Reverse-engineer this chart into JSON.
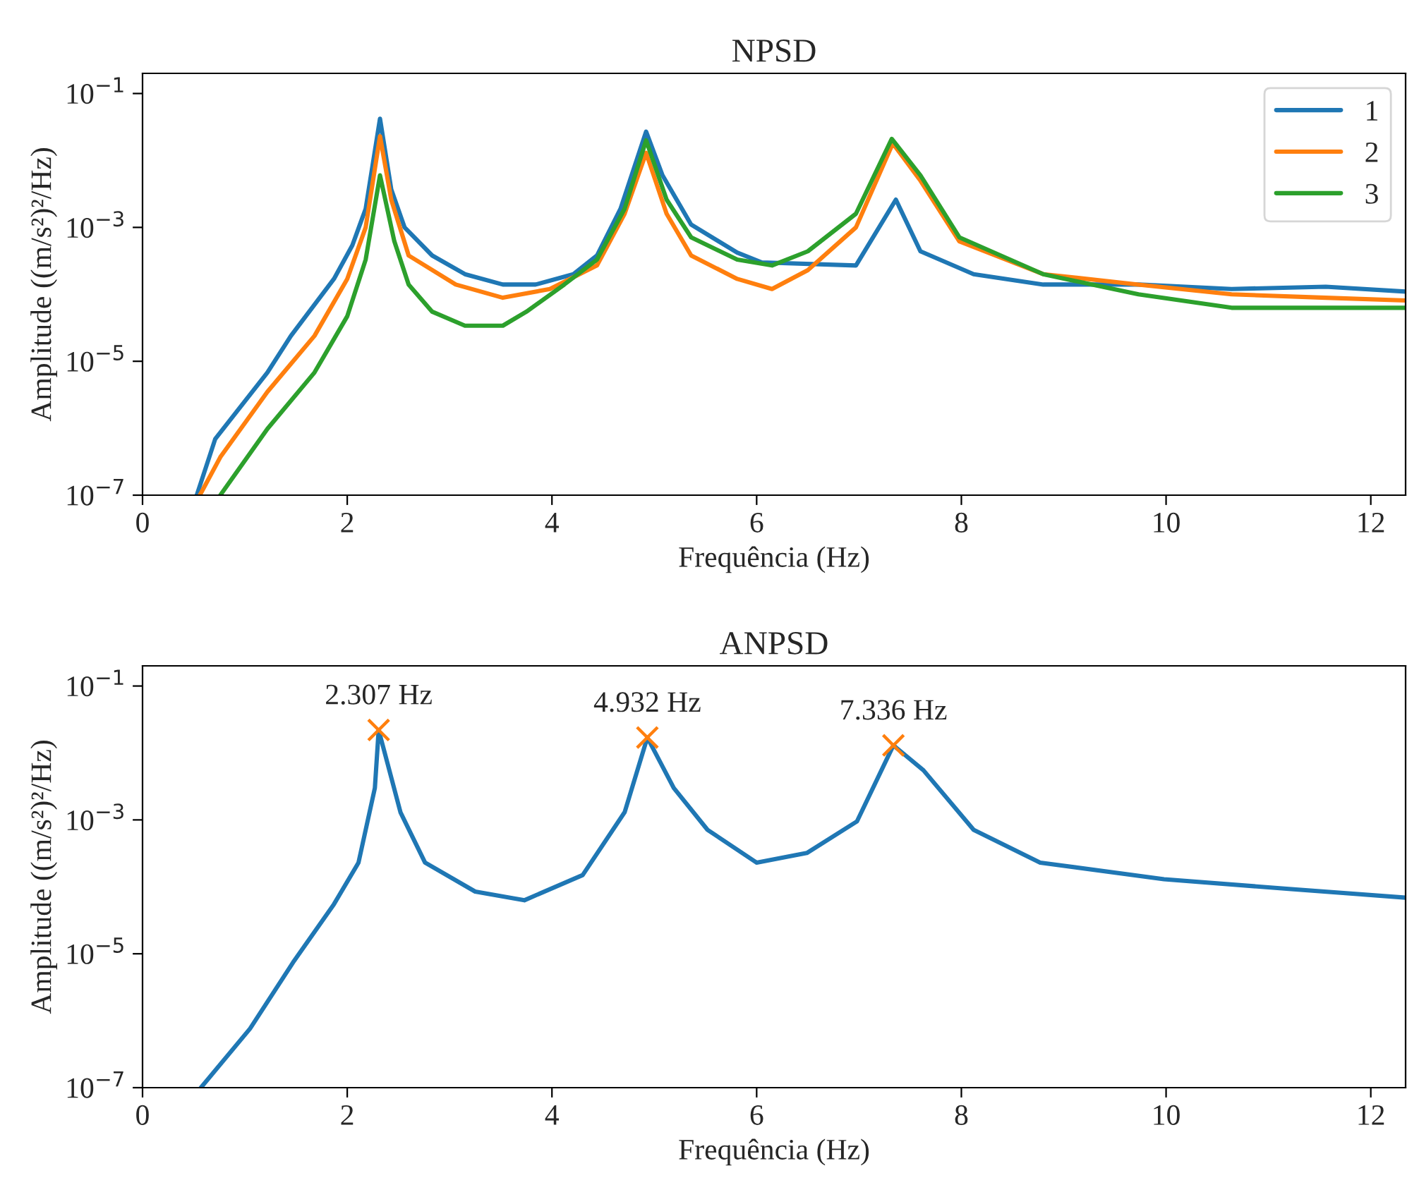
{
  "chart_data": [
    {
      "type": "line",
      "title": "NPSD",
      "xlabel": "Frequência (Hz)",
      "ylabel": "Amplitude ((m/s²)²/Hz)",
      "log": "y",
      "xlim": [
        0,
        12.34
      ],
      "ylim": [
        1e-07,
        0.2
      ],
      "xticks": [
        0,
        2,
        4,
        6,
        8,
        10,
        12
      ],
      "yticks": [
        {
          "value": 1e-07,
          "label": "10$^{−7}$"
        },
        {
          "value": 1e-05,
          "label": "10$^{−5}$"
        },
        {
          "value": 0.001,
          "label": "10$^{−3}$"
        },
        {
          "value": 0.1,
          "label": "10$^{−1}$"
        }
      ],
      "legend": "top right",
      "grid": false,
      "marker": "none",
      "line_style": "solid",
      "series": [
        {
          "name": "1",
          "color": "#1f77b4",
          "x": [
            0.53,
            0.71,
            1.22,
            1.45,
            1.87,
            2.05,
            2.18,
            2.32,
            2.43,
            2.56,
            2.83,
            3.15,
            3.52,
            3.84,
            4.21,
            4.44,
            4.67,
            4.92,
            5.08,
            5.36,
            5.81,
            6.05,
            6.97,
            7.36,
            7.6,
            8.12,
            8.8,
            9.73,
            10.64,
            11.56,
            12.34
          ],
          "values": [
            1e-07,
            6.9e-07,
            6.8e-06,
            2.4e-05,
            0.00017,
            0.00054,
            0.0019,
            0.042,
            0.0037,
            0.001,
            0.00038,
            0.0002,
            0.00014,
            0.00014,
            0.0002,
            0.00038,
            0.0019,
            0.027,
            0.006,
            0.0011,
            0.00042,
            0.0003,
            0.00027,
            0.0026,
            0.00044,
            0.0002,
            0.00014,
            0.00014,
            0.00012,
            0.00013,
            0.00011
          ]
        },
        {
          "name": "2",
          "color": "#ff7f0e",
          "x": [
            0.56,
            0.76,
            1.22,
            1.68,
            2.0,
            2.18,
            2.32,
            2.43,
            2.6,
            3.06,
            3.52,
            3.98,
            4.44,
            4.71,
            4.92,
            5.12,
            5.36,
            5.81,
            6.15,
            6.5,
            6.97,
            7.33,
            7.6,
            7.98,
            8.8,
            9.73,
            10.64,
            11.56,
            12.34
          ],
          "values": [
            1e-07,
            3.7e-07,
            3.5e-06,
            2.4e-05,
            0.00017,
            0.001,
            0.023,
            0.0026,
            0.00038,
            0.00014,
            8.9e-05,
            0.00012,
            0.00027,
            0.0016,
            0.013,
            0.0016,
            0.00038,
            0.00017,
            0.00012,
            0.00023,
            0.001,
            0.018,
            0.005,
            0.00062,
            0.0002,
            0.00014,
            0.0001,
            8.9e-05,
            8.1e-05
          ]
        },
        {
          "name": "3",
          "color": "#2ca02c",
          "x": [
            0.76,
            1.22,
            1.68,
            2.0,
            2.18,
            2.32,
            2.46,
            2.6,
            2.83,
            3.15,
            3.52,
            3.75,
            4.12,
            4.44,
            4.71,
            4.92,
            5.12,
            5.36,
            5.81,
            6.15,
            6.5,
            6.97,
            7.32,
            7.6,
            7.98,
            8.8,
            9.73,
            10.64,
            11.56,
            12.34
          ],
          "values": [
            1e-07,
            9.8e-07,
            6.8e-06,
            4.7e-05,
            0.00033,
            0.006,
            0.00062,
            0.00014,
            5.5e-05,
            3.4e-05,
            3.4e-05,
            5.5e-05,
            0.00014,
            0.00033,
            0.0019,
            0.02,
            0.0026,
            0.00071,
            0.00033,
            0.00027,
            0.00044,
            0.0016,
            0.021,
            0.006,
            0.00071,
            0.0002,
            0.0001,
            6.3e-05,
            6.3e-05,
            6.3e-05
          ]
        }
      ]
    },
    {
      "type": "line",
      "title": "ANPSD",
      "xlabel": "Frequência (Hz)",
      "ylabel": "Amplitude ((m/s²)²/Hz)",
      "log": "y",
      "xlim": [
        0,
        12.34
      ],
      "ylim": [
        1e-07,
        0.2
      ],
      "xticks": [
        0,
        2,
        4,
        6,
        8,
        10,
        12
      ],
      "yticks": [
        {
          "value": 1e-07,
          "label": "10$^{−7}$"
        },
        {
          "value": 1e-05,
          "label": "10$^{−5}$"
        },
        {
          "value": 0.001,
          "label": "10$^{−3}$"
        },
        {
          "value": 0.1,
          "label": "10$^{−1}$"
        }
      ],
      "grid": false,
      "line_style": "solid",
      "series": [
        {
          "color": "#1f77b4",
          "marker": "none",
          "x": [
            0.57,
            1.05,
            1.47,
            1.87,
            2.11,
            2.27,
            2.307,
            2.52,
            2.76,
            3.25,
            3.73,
            4.3,
            4.71,
            4.932,
            5.19,
            5.52,
            6.0,
            6.49,
            6.98,
            7.336,
            7.63,
            8.12,
            8.77,
            9.98,
            11.2,
            12.34
          ],
          "values": [
            1e-07,
            7.6e-07,
            7.4e-06,
            5.5e-05,
            0.00023,
            0.003,
            0.022,
            0.0013,
            0.00023,
            8.5e-05,
            6.3e-05,
            0.00015,
            0.0013,
            0.017,
            0.003,
            0.00071,
            0.00023,
            0.00032,
            0.00095,
            0.013,
            0.0055,
            0.00071,
            0.00023,
            0.00013,
            9.3e-05,
            6.9e-05
          ]
        },
        {
          "type": "scatter",
          "color": "#ff7f0e",
          "marker": "cross",
          "x": [
            2.307,
            4.932,
            7.336
          ],
          "values": [
            0.022,
            0.017,
            0.013
          ]
        }
      ],
      "annotations": [
        {
          "text": "2.307 Hz",
          "x": 2.307,
          "y": 0.022
        },
        {
          "text": "4.932 Hz",
          "x": 4.932,
          "y": 0.017
        },
        {
          "text": "7.336 Hz",
          "x": 7.336,
          "y": 0.013
        }
      ]
    }
  ]
}
